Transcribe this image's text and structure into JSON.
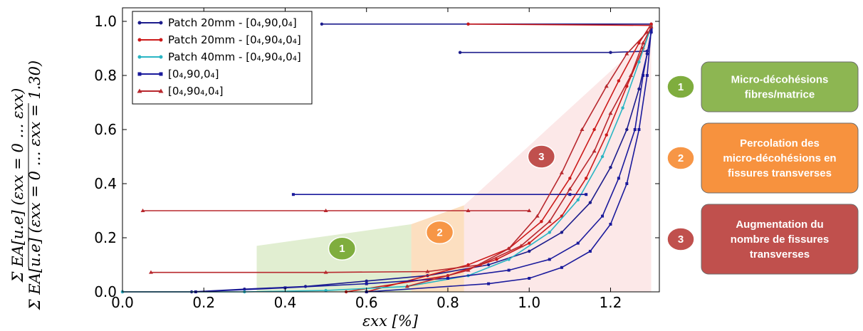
{
  "chart_data": {
    "type": "line",
    "xlabel": "εxx [%]",
    "ylabel_num": "Σ EA[u.e] (εxx = 0 … εxx)",
    "ylabel_den": "Σ EA[u.e] (εxx = 0 … εxx = 1.30)",
    "xlim": [
      0.0,
      1.32
    ],
    "ylim": [
      0.0,
      1.05
    ],
    "x_ticks": [
      "0.0",
      "0.2",
      "0.4",
      "0.6",
      "0.8",
      "1.0",
      "1.2"
    ],
    "x_tick_values": [
      0.0,
      0.2,
      0.4,
      0.6,
      0.8,
      1.0,
      1.2
    ],
    "y_ticks": [
      "0.0",
      "0.2",
      "0.4",
      "0.6",
      "0.8",
      "1.0"
    ],
    "y_tick_values": [
      0.0,
      0.2,
      0.4,
      0.6,
      0.8,
      1.0
    ],
    "grid": false,
    "legend_position": "top-left",
    "series": [
      {
        "name": "Patch 20mm - [0₄,90,0₄]",
        "color": "#1c1c8c",
        "marker": "circle",
        "curves": [
          [
            [
              0.0,
              0.0
            ],
            [
              0.17,
              0.0
            ],
            [
              0.3,
              0.01
            ],
            [
              0.45,
              0.02
            ],
            [
              0.6,
              0.04
            ],
            [
              0.75,
              0.06
            ],
            [
              0.9,
              0.1
            ],
            [
              1.0,
              0.15
            ],
            [
              1.08,
              0.22
            ],
            [
              1.15,
              0.33
            ],
            [
              1.2,
              0.46
            ],
            [
              1.24,
              0.6
            ],
            [
              1.27,
              0.75
            ],
            [
              1.29,
              0.88
            ],
            [
              1.3,
              0.96
            ]
          ],
          [
            [
              0.49,
              0.99
            ],
            [
              0.85,
              0.99
            ],
            [
              1.3,
              0.99
            ]
          ],
          [
            [
              0.83,
              0.885
            ],
            [
              1.2,
              0.885
            ],
            [
              1.29,
              0.89
            ]
          ]
        ]
      },
      {
        "name": "Patch 20mm - [0₄,90₄,0₄]",
        "color": "#cc1a1a",
        "marker": "circle",
        "curves": [
          [
            [
              0.55,
              0.0
            ],
            [
              0.8,
              0.06
            ],
            [
              0.92,
              0.12
            ],
            [
              1.0,
              0.18
            ],
            [
              1.08,
              0.28
            ],
            [
              1.14,
              0.42
            ],
            [
              1.19,
              0.58
            ],
            [
              1.24,
              0.76
            ],
            [
              1.28,
              0.9
            ],
            [
              1.3,
              0.98
            ]
          ],
          [
            [
              0.6,
              0.0
            ],
            [
              0.85,
              0.1
            ],
            [
              0.95,
              0.16
            ],
            [
              1.03,
              0.26
            ],
            [
              1.1,
              0.42
            ],
            [
              1.16,
              0.6
            ],
            [
              1.22,
              0.78
            ],
            [
              1.27,
              0.92
            ],
            [
              1.3,
              0.99
            ]
          ],
          [
            [
              0.85,
              0.99
            ],
            [
              1.3,
              0.985
            ]
          ]
        ]
      },
      {
        "name": "Patch 40mm - [0₄,90₄,0₄]",
        "color": "#2ab5c4",
        "marker": "circle",
        "curves": [
          [
            [
              0.0,
              0.0
            ],
            [
              0.3,
              0.0
            ],
            [
              0.5,
              0.005
            ],
            [
              0.7,
              0.02
            ],
            [
              0.85,
              0.06
            ],
            [
              0.95,
              0.12
            ],
            [
              1.05,
              0.22
            ],
            [
              1.12,
              0.34
            ],
            [
              1.18,
              0.5
            ],
            [
              1.23,
              0.68
            ],
            [
              1.27,
              0.85
            ],
            [
              1.3,
              0.98
            ]
          ]
        ]
      },
      {
        "name": "[0₄,90,0₄]",
        "color": "#1a1a9c",
        "marker": "square",
        "curves": [
          [
            [
              0.18,
              0.0
            ],
            [
              0.4,
              0.015
            ],
            [
              0.6,
              0.03
            ],
            [
              0.8,
              0.05
            ],
            [
              0.95,
              0.08
            ],
            [
              1.05,
              0.12
            ],
            [
              1.12,
              0.18
            ],
            [
              1.18,
              0.28
            ],
            [
              1.22,
              0.42
            ],
            [
              1.26,
              0.6
            ],
            [
              1.28,
              0.8
            ],
            [
              1.3,
              0.96
            ]
          ],
          [
            [
              0.42,
              0.36
            ],
            [
              1.1,
              0.36
            ],
            [
              1.14,
              0.36
            ]
          ],
          [
            [
              0.6,
              0.0
            ],
            [
              0.9,
              0.03
            ],
            [
              1.0,
              0.05
            ],
            [
              1.08,
              0.09
            ],
            [
              1.15,
              0.15
            ],
            [
              1.2,
              0.25
            ],
            [
              1.24,
              0.4
            ],
            [
              1.27,
              0.6
            ],
            [
              1.29,
              0.8
            ],
            [
              1.3,
              0.97
            ]
          ]
        ]
      },
      {
        "name": "[0₄,90₄,0₄]",
        "color": "#b8282e",
        "marker": "triangle",
        "curves": [
          [
            [
              0.05,
              0.3
            ],
            [
              0.5,
              0.3
            ],
            [
              0.85,
              0.3
            ],
            [
              1.0,
              0.3
            ]
          ],
          [
            [
              0.07,
              0.072
            ],
            [
              0.5,
              0.072
            ],
            [
              0.75,
              0.075
            ],
            [
              0.88,
              0.1
            ],
            [
              0.98,
              0.17
            ],
            [
              1.05,
              0.26
            ],
            [
              1.1,
              0.38
            ],
            [
              1.16,
              0.52
            ],
            [
              1.2,
              0.66
            ],
            [
              1.25,
              0.8
            ],
            [
              1.28,
              0.92
            ],
            [
              1.3,
              0.98
            ]
          ],
          [
            [
              0.7,
              0.02
            ],
            [
              0.85,
              0.08
            ],
            [
              0.95,
              0.16
            ],
            [
              1.02,
              0.28
            ],
            [
              1.08,
              0.44
            ],
            [
              1.13,
              0.6
            ],
            [
              1.19,
              0.76
            ],
            [
              1.24,
              0.88
            ],
            [
              1.29,
              0.96
            ]
          ]
        ]
      }
    ],
    "zones": [
      {
        "label": "1",
        "color": "#dcebc9",
        "polygon": [
          [
            0.33,
            0.0
          ],
          [
            0.33,
            0.17
          ],
          [
            0.71,
            0.25
          ],
          [
            0.71,
            0.0
          ]
        ],
        "badge_at": [
          0.54,
          0.16
        ],
        "badge_color": "#7fad3e"
      },
      {
        "label": "2",
        "color": "#fbd9b5",
        "polygon": [
          [
            0.71,
            0.0
          ],
          [
            0.71,
            0.25
          ],
          [
            0.84,
            0.32
          ],
          [
            0.84,
            0.0
          ]
        ],
        "badge_at": [
          0.78,
          0.22
        ],
        "badge_color": "#f79646"
      },
      {
        "label": "3",
        "color": "#fbe4e4",
        "polygon": [
          [
            0.84,
            0.0
          ],
          [
            0.84,
            0.32
          ],
          [
            1.29,
            0.94
          ],
          [
            1.3,
            0.94
          ],
          [
            1.3,
            0.0
          ]
        ],
        "badge_at": [
          1.03,
          0.5
        ],
        "badge_color": "#c0504d"
      }
    ]
  },
  "annotations": [
    {
      "number": "1",
      "lines": [
        "Micro-décohésions",
        "fibres/matrice"
      ],
      "color": "#8db652",
      "circle_color": "#7fad3e"
    },
    {
      "number": "2",
      "lines": [
        "Percolation des",
        "micro-décohésions en",
        "fissures transverses"
      ],
      "color": "#f7923e",
      "circle_color": "#f79646"
    },
    {
      "number": "3",
      "lines": [
        "Augmentation du",
        "nombre de fissures",
        "transverses"
      ],
      "color": "#c0504d",
      "circle_color": "#c0504d"
    }
  ]
}
